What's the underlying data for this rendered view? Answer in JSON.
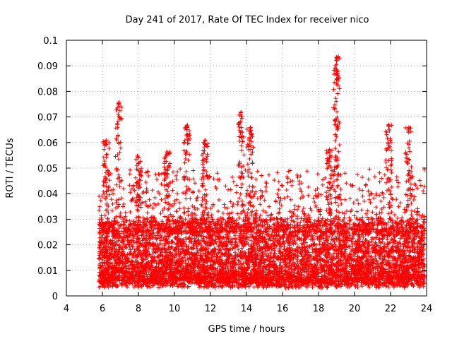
{
  "chart_data": {
    "type": "scatter",
    "title": "Day 241 of 2017, Rate Of TEC Index for receiver nico",
    "xlabel": "GPS time / hours",
    "ylabel": "ROTI / TECUs",
    "xlim": [
      4,
      24
    ],
    "ylim": [
      0,
      0.1
    ],
    "x_ticks": [
      4,
      6,
      8,
      10,
      12,
      14,
      16,
      18,
      20,
      22,
      24
    ],
    "x_tick_labels": [
      "4",
      "6",
      "8",
      "10",
      "12",
      "14",
      "16",
      "18",
      "20",
      "22",
      "24"
    ],
    "y_ticks": [
      0,
      0.01,
      0.02,
      0.03,
      0.04,
      0.05,
      0.06,
      0.07,
      0.08,
      0.09,
      0.1
    ],
    "y_tick_labels": [
      "0",
      "0.01",
      "0.02",
      "0.03",
      "0.04",
      "0.05",
      "0.06",
      "0.07",
      "0.08",
      "0.09",
      "0.1"
    ],
    "grid": true,
    "marker": "plus",
    "series_color": "#ff0000",
    "data_range": {
      "x_start": 5.8,
      "x_end": 23.9
    },
    "baseline_band": [
      0.005,
      0.03
    ],
    "peaks": [
      {
        "x": 6.2,
        "y": 0.061
      },
      {
        "x": 6.9,
        "y": 0.076
      },
      {
        "x": 8.0,
        "y": 0.055
      },
      {
        "x": 9.6,
        "y": 0.057
      },
      {
        "x": 10.7,
        "y": 0.067
      },
      {
        "x": 11.7,
        "y": 0.061
      },
      {
        "x": 13.7,
        "y": 0.072
      },
      {
        "x": 14.2,
        "y": 0.066
      },
      {
        "x": 18.6,
        "y": 0.058
      },
      {
        "x": 19.0,
        "y": 0.094
      },
      {
        "x": 19.0,
        "y": 0.089
      },
      {
        "x": 21.9,
        "y": 0.068
      },
      {
        "x": 23.0,
        "y": 0.066
      }
    ]
  }
}
